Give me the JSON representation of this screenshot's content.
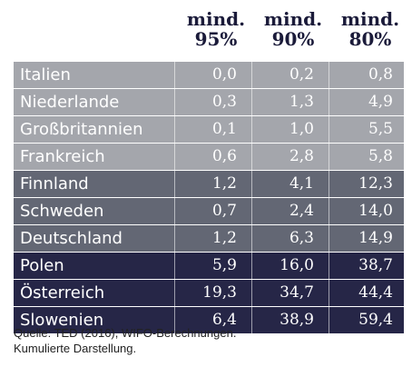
{
  "table": {
    "columns": [
      "mind. 95%",
      "mind. 90%",
      "mind. 80%"
    ],
    "column_lines": [
      [
        "mind.",
        "95%"
      ],
      [
        "mind.",
        "90%"
      ],
      [
        "mind.",
        "80%"
      ]
    ],
    "groups": [
      {
        "color": "#a4a6ac",
        "rows": [
          {
            "label": "Italien",
            "values": [
              "0,0",
              "0,2",
              "0,8"
            ]
          },
          {
            "label": "Niederlande",
            "values": [
              "0,3",
              "1,3",
              "4,9"
            ]
          },
          {
            "label": "Großbritannien",
            "values": [
              "0,1",
              "1,0",
              "5,5"
            ]
          },
          {
            "label": "Frankreich",
            "values": [
              "0,6",
              "2,8",
              "5,8"
            ]
          }
        ]
      },
      {
        "color": "#636774",
        "rows": [
          {
            "label": "Finnland",
            "values": [
              "1,2",
              "4,1",
              "12,3"
            ]
          },
          {
            "label": "Schweden",
            "values": [
              "0,7",
              "2,4",
              "14,0"
            ]
          },
          {
            "label": "Deutschland",
            "values": [
              "1,2",
              "6,3",
              "14,9"
            ]
          }
        ]
      },
      {
        "color": "#262647",
        "rows": [
          {
            "label": "Polen",
            "values": [
              "5,9",
              "16,0",
              "38,7"
            ]
          },
          {
            "label": "Österreich",
            "values": [
              "19,3",
              "34,7",
              "44,4"
            ]
          },
          {
            "label": "Slowenien",
            "values": [
              "6,4",
              "38,9",
              "59,4"
            ]
          }
        ]
      }
    ]
  },
  "source": {
    "line1": "Quelle: TED (2016), WIFO-Berechnungen.",
    "line2": "Kumulierte Darstellung."
  },
  "chart_data": {
    "type": "table",
    "columns": [
      "mind. 95%",
      "mind. 90%",
      "mind. 80%"
    ],
    "rows": [
      {
        "label": "Italien",
        "values": [
          0.0,
          0.2,
          0.8
        ]
      },
      {
        "label": "Niederlande",
        "values": [
          0.3,
          1.3,
          4.9
        ]
      },
      {
        "label": "Großbritannien",
        "values": [
          0.1,
          1.0,
          5.5
        ]
      },
      {
        "label": "Frankreich",
        "values": [
          0.6,
          2.8,
          5.8
        ]
      },
      {
        "label": "Finnland",
        "values": [
          1.2,
          4.1,
          12.3
        ]
      },
      {
        "label": "Schweden",
        "values": [
          0.7,
          2.4,
          14.0
        ]
      },
      {
        "label": "Deutschland",
        "values": [
          1.2,
          6.3,
          14.9
        ]
      },
      {
        "label": "Polen",
        "values": [
          5.9,
          16.0,
          38.7
        ]
      },
      {
        "label": "Österreich",
        "values": [
          19.3,
          34.7,
          44.4
        ]
      },
      {
        "label": "Slowenien",
        "values": [
          6.4,
          38.9,
          59.4
        ]
      }
    ]
  }
}
